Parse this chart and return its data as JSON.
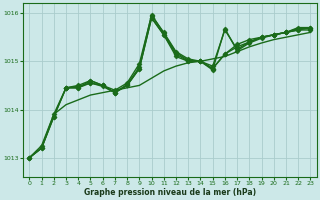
{
  "bg_color": "#cce8e8",
  "grid_color": "#aacccc",
  "line_color": "#1a6b1a",
  "xlabel": "Graphe pression niveau de la mer (hPa)",
  "ylim": [
    1012.6,
    1016.2
  ],
  "xlim": [
    -0.5,
    23.5
  ],
  "yticks": [
    1013,
    1014,
    1015,
    1016
  ],
  "xticks": [
    0,
    1,
    2,
    3,
    4,
    5,
    6,
    7,
    8,
    9,
    10,
    11,
    12,
    13,
    14,
    15,
    16,
    17,
    18,
    19,
    20,
    21,
    22,
    23
  ],
  "series": [
    {
      "x": [
        0,
        1,
        2,
        3,
        4,
        5,
        6,
        7,
        8,
        9,
        10,
        11,
        12,
        13,
        14,
        15,
        16,
        17,
        18,
        19,
        20,
        21,
        22,
        23
      ],
      "y": [
        1013.0,
        1013.2,
        1013.9,
        1014.1,
        1014.2,
        1014.3,
        1014.35,
        1014.4,
        1014.45,
        1014.5,
        1014.65,
        1014.8,
        1014.9,
        1014.97,
        1015.0,
        1015.05,
        1015.1,
        1015.2,
        1015.3,
        1015.38,
        1015.45,
        1015.5,
        1015.55,
        1015.6
      ],
      "marker": null,
      "markersize": 0,
      "linewidth": 1.0,
      "linestyle": "-"
    },
    {
      "x": [
        3,
        4,
        5,
        6,
        7,
        8,
        9,
        10,
        11,
        12,
        13,
        14,
        15,
        16,
        17,
        18,
        19,
        20,
        21,
        22,
        23
      ],
      "y": [
        1014.45,
        1014.45,
        1014.6,
        1014.5,
        1014.35,
        1014.5,
        1014.85,
        1015.9,
        1015.55,
        1015.1,
        1015.0,
        1015.0,
        1014.85,
        1015.15,
        1015.35,
        1015.45,
        1015.5,
        1015.55,
        1015.6,
        1015.65,
        1015.7
      ],
      "marker": "D",
      "markersize": 2.5,
      "linewidth": 1.0,
      "linestyle": "-"
    },
    {
      "x": [
        0,
        1,
        2,
        3,
        4,
        5,
        6,
        7,
        8,
        9,
        10,
        11,
        12,
        13,
        14,
        15,
        16,
        17,
        18,
        19,
        20,
        21,
        22,
        23
      ],
      "y": [
        1013.0,
        1013.2,
        1013.85,
        1014.45,
        1014.45,
        1014.55,
        1014.5,
        1014.35,
        1014.5,
        1014.85,
        1015.9,
        1015.55,
        1015.15,
        1015.0,
        1015.0,
        1014.85,
        1015.15,
        1015.3,
        1015.4,
        1015.5,
        1015.55,
        1015.6,
        1015.65,
        1015.65
      ],
      "marker": "D",
      "markersize": 2.5,
      "linewidth": 1.0,
      "linestyle": "-"
    },
    {
      "x": [
        0,
        1,
        2,
        3,
        4,
        5,
        6,
        7,
        8,
        9,
        10,
        11,
        12,
        13,
        14,
        15,
        16,
        17,
        18,
        19,
        20,
        21,
        22,
        23
      ],
      "y": [
        1013.0,
        1013.25,
        1013.9,
        1014.45,
        1014.5,
        1014.6,
        1014.5,
        1014.4,
        1014.55,
        1014.95,
        1015.95,
        1015.6,
        1015.2,
        1015.05,
        1015.0,
        1014.9,
        1015.65,
        1015.25,
        1015.4,
        1015.5,
        1015.55,
        1015.6,
        1015.7,
        1015.7
      ],
      "marker": "D",
      "markersize": 2.5,
      "linewidth": 1.0,
      "linestyle": "-"
    },
    {
      "x": [
        0,
        1,
        2,
        3,
        4,
        5,
        6,
        7,
        8,
        9,
        10,
        11,
        12,
        13,
        14,
        15,
        16,
        17,
        18,
        19,
        20,
        21,
        22,
        23
      ],
      "y": [
        1013.0,
        1013.2,
        1013.85,
        1014.45,
        1014.48,
        1014.55,
        1014.48,
        1014.35,
        1014.52,
        1014.88,
        1015.97,
        1015.58,
        1015.18,
        1015.02,
        1015.0,
        1014.82,
        1015.68,
        1015.22,
        1015.38,
        1015.48,
        1015.55,
        1015.6,
        1015.68,
        1015.68
      ],
      "marker": "D",
      "markersize": 2.5,
      "linewidth": 1.0,
      "linestyle": "-"
    }
  ]
}
